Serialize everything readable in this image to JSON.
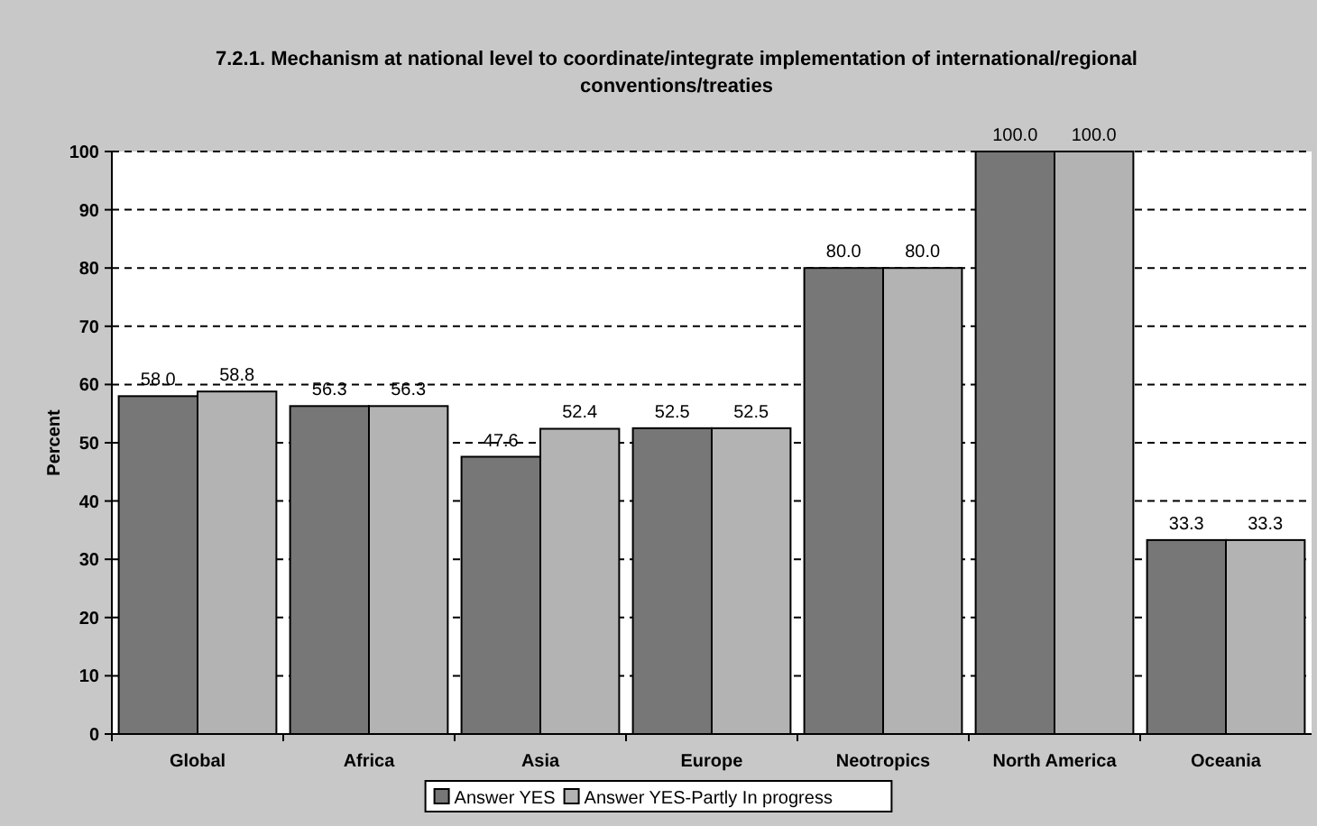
{
  "chart_data": {
    "type": "bar",
    "title": "7.2.1. Mechanism at national level to coordinate/integrate implementation of international/regional conventions/treaties",
    "ylabel": "Percent",
    "categories": [
      "Global",
      "Africa",
      "Asia",
      "Europe",
      "Neotropics",
      "North America",
      "Oceania"
    ],
    "series": [
      {
        "name": "Answer YES",
        "color": "#777777",
        "values": [
          58.0,
          56.3,
          47.6,
          52.5,
          80.0,
          100.0,
          33.3
        ],
        "value_labels": [
          "58.0",
          "56.3",
          "47.6",
          "52.5",
          "80.0",
          "100.0",
          "33.3"
        ]
      },
      {
        "name": "Answer YES-Partly In progress",
        "color": "#b3b3b3",
        "values": [
          58.8,
          56.3,
          52.4,
          52.5,
          80.0,
          100.0,
          33.3
        ],
        "value_labels": [
          "58.8",
          "56.3",
          "52.4",
          "52.5",
          "80.0",
          "100.0",
          "33.3"
        ]
      }
    ],
    "ylim": [
      0,
      100
    ],
    "yticks": [
      0,
      10,
      20,
      30,
      40,
      50,
      60,
      70,
      80,
      90,
      100
    ],
    "grid": "y",
    "legend": "bottom"
  }
}
